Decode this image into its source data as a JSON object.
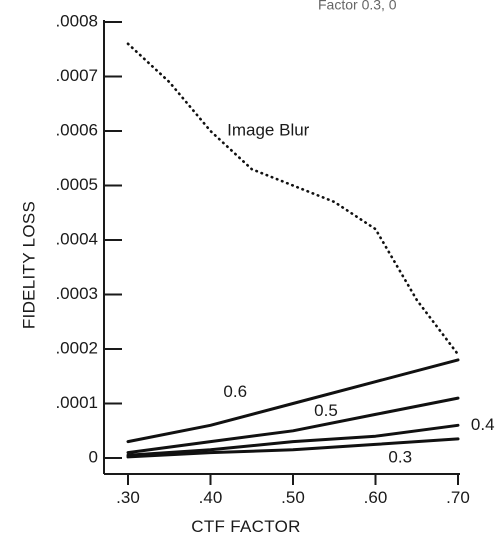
{
  "chart_data": {
    "type": "line",
    "title": "",
    "top_crop_text": "Factor 0.3, 0",
    "xlabel": "CTF FACTOR",
    "ylabel": "FIDELITY LOSS",
    "xlim": [
      0.3,
      0.7
    ],
    "ylim": [
      0,
      0.0008
    ],
    "x_ticks": [
      0.3,
      0.4,
      0.5,
      0.6,
      0.7
    ],
    "x_tick_labels": [
      ".30",
      ".40",
      ".50",
      ".60",
      ".70"
    ],
    "y_ticks": [
      0,
      0.0001,
      0.0002,
      0.0003,
      0.0004,
      0.0005,
      0.0006,
      0.0007,
      0.0008
    ],
    "y_tick_labels": [
      "0",
      ".0001",
      ".0002",
      ".0003",
      ".0004",
      ".0005",
      ".0006",
      ".0007",
      ".0008"
    ],
    "grid": false,
    "legend": "none",
    "series": [
      {
        "name": "Image Blur",
        "style": "dotted",
        "x": [
          0.3,
          0.35,
          0.4,
          0.45,
          0.5,
          0.55,
          0.6,
          0.65,
          0.7
        ],
        "y": [
          0.00076,
          0.00069,
          0.0006,
          0.00053,
          0.0005,
          0.00047,
          0.00042,
          0.00029,
          0.00019
        ]
      },
      {
        "name": "0.6",
        "style": "solid",
        "x": [
          0.3,
          0.4,
          0.5,
          0.6,
          0.7
        ],
        "y": [
          3e-05,
          6e-05,
          0.0001,
          0.00014,
          0.00018
        ]
      },
      {
        "name": "0.5",
        "style": "solid",
        "x": [
          0.3,
          0.4,
          0.5,
          0.6,
          0.7
        ],
        "y": [
          1e-05,
          3e-05,
          5e-05,
          8e-05,
          0.00011
        ]
      },
      {
        "name": "0.4",
        "style": "solid",
        "x": [
          0.3,
          0.4,
          0.5,
          0.6,
          0.7
        ],
        "y": [
          5e-06,
          1.5e-05,
          3e-05,
          4e-05,
          6e-05
        ]
      },
      {
        "name": "0.3",
        "style": "solid",
        "x": [
          0.3,
          0.4,
          0.5,
          0.6,
          0.7
        ],
        "y": [
          2e-06,
          1e-05,
          1.5e-05,
          2.5e-05,
          3.5e-05
        ]
      }
    ],
    "annotations": [
      {
        "text": "Image Blur",
        "x": 0.47,
        "y": 0.0006
      },
      {
        "text": "0.6",
        "x": 0.43,
        "y": 0.00012
      },
      {
        "text": "0.5",
        "x": 0.54,
        "y": 8.5e-05
      },
      {
        "text": "0.4",
        "x": 0.73,
        "y": 6e-05
      },
      {
        "text": "0.3",
        "x": 0.63,
        "y": 0.0
      }
    ]
  }
}
